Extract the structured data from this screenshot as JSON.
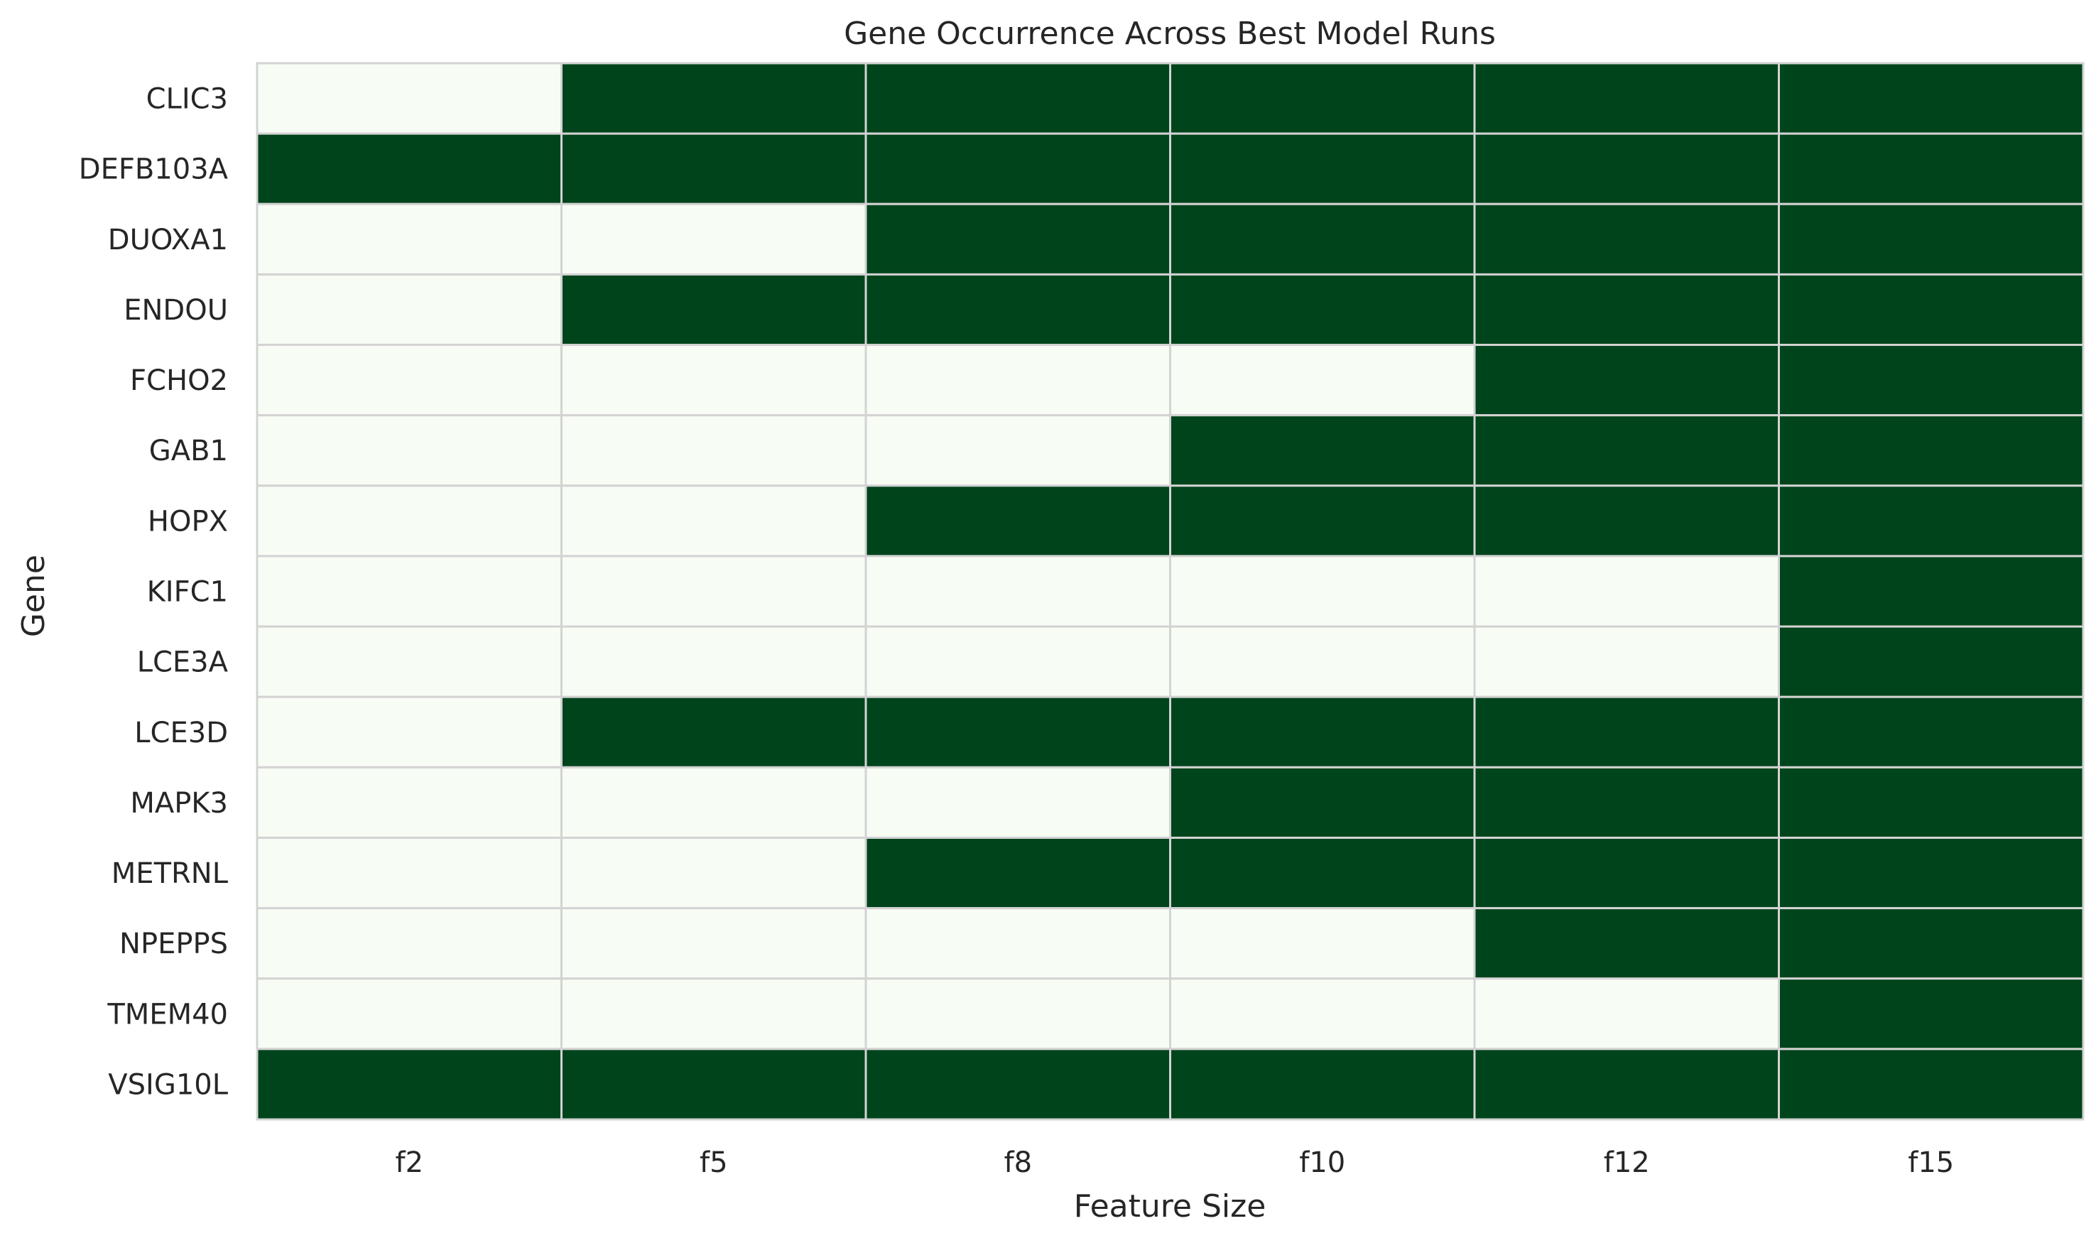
{
  "chart_data": {
    "type": "heatmap",
    "title": "Gene Occurrence Across Best Model Runs",
    "xlabel": "Feature Size",
    "ylabel": "Gene",
    "x": [
      "f2",
      "f5",
      "f8",
      "f10",
      "f12",
      "f15"
    ],
    "y": [
      "CLIC3",
      "DEFB103A",
      "DUOXA1",
      "ENDOU",
      "FCHO2",
      "GAB1",
      "HOPX",
      "KIFC1",
      "LCE3A",
      "LCE3D",
      "MAPK3",
      "METRNL",
      "NPEPPS",
      "TMEM40",
      "VSIG10L"
    ],
    "values": [
      [
        0,
        1,
        1,
        1,
        1,
        1
      ],
      [
        1,
        1,
        1,
        1,
        1,
        1
      ],
      [
        0,
        0,
        1,
        1,
        1,
        1
      ],
      [
        0,
        1,
        1,
        1,
        1,
        1
      ],
      [
        0,
        0,
        0,
        0,
        1,
        1
      ],
      [
        0,
        0,
        0,
        1,
        1,
        1
      ],
      [
        0,
        0,
        1,
        1,
        1,
        1
      ],
      [
        0,
        0,
        0,
        0,
        0,
        1
      ],
      [
        0,
        0,
        0,
        0,
        0,
        1
      ],
      [
        0,
        1,
        1,
        1,
        1,
        1
      ],
      [
        0,
        0,
        0,
        1,
        1,
        1
      ],
      [
        0,
        0,
        1,
        1,
        1,
        1
      ],
      [
        0,
        0,
        0,
        0,
        1,
        1
      ],
      [
        0,
        0,
        0,
        0,
        0,
        1
      ],
      [
        1,
        1,
        1,
        1,
        1,
        1
      ]
    ],
    "colors": {
      "absent": "#f7fcf5",
      "present": "#00441b",
      "cell_border": "#d3d3d3"
    },
    "colorbar": false,
    "grid": false
  }
}
